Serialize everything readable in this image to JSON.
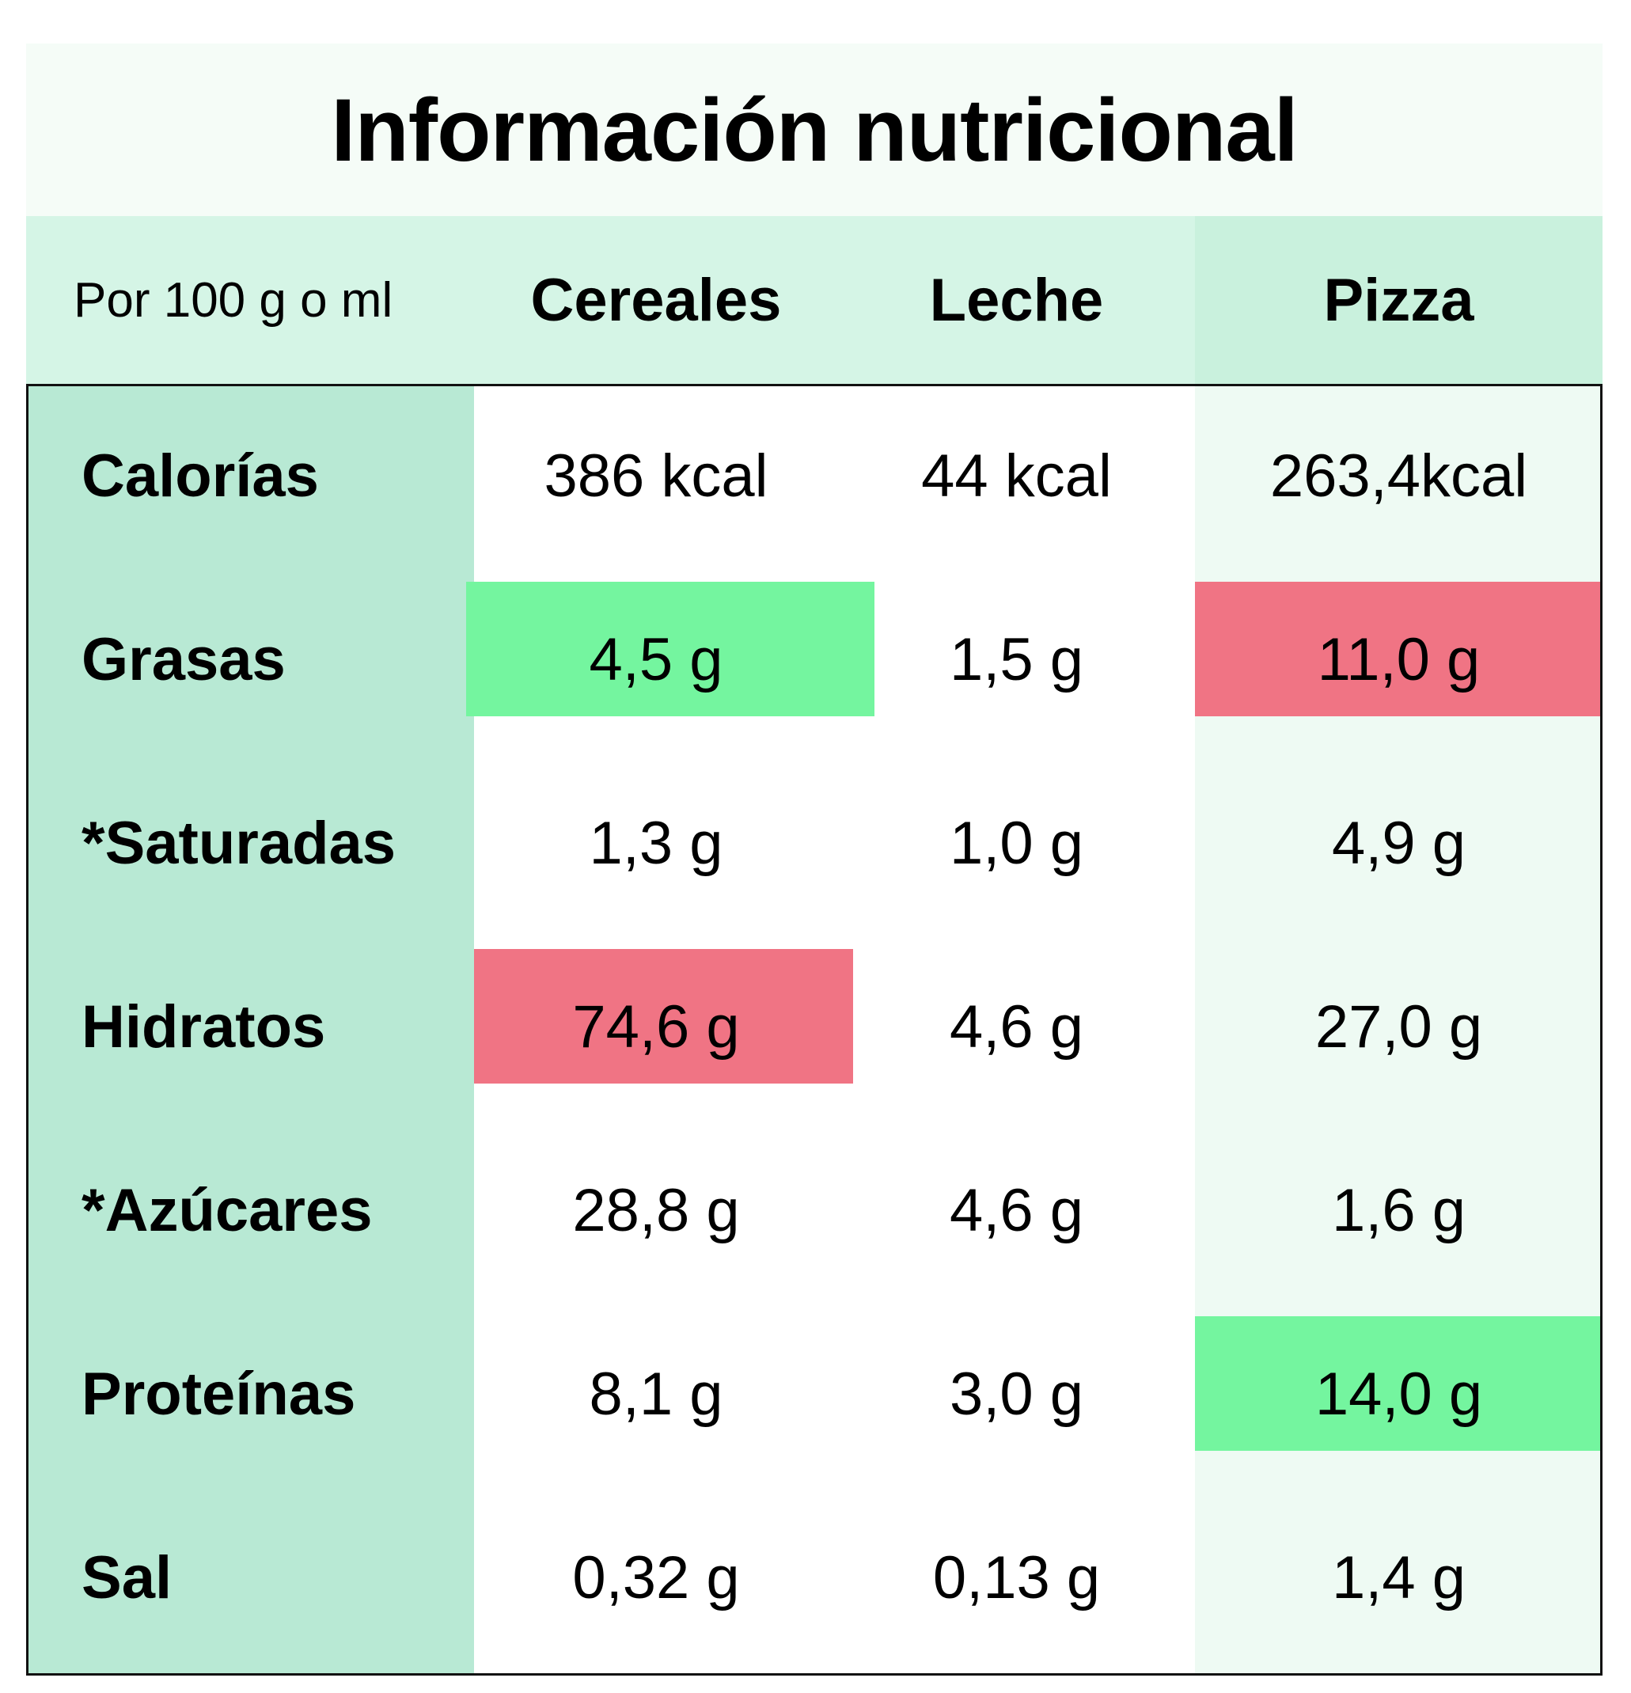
{
  "chart_data": {
    "type": "table",
    "title": "Información nutricional",
    "corner_label": "Por 100 g o ml",
    "columns": [
      "Cereales",
      "Leche",
      "Pizza"
    ],
    "rows": [
      {
        "label": "Calorías",
        "values": [
          "386 kcal",
          "44 kcal",
          "263,4kcal"
        ],
        "highlight": [
          null,
          null,
          null
        ]
      },
      {
        "label": "Grasas",
        "values": [
          "4,5 g",
          "1,5 g",
          "11,0 g"
        ],
        "highlight": [
          "good",
          null,
          "bad"
        ]
      },
      {
        "label": "*Saturadas",
        "values": [
          "1,3 g",
          "1,0 g",
          "4,9 g"
        ],
        "highlight": [
          null,
          null,
          null
        ]
      },
      {
        "label": "Hidratos",
        "values": [
          "74,6 g",
          "4,6 g",
          "27,0 g"
        ],
        "highlight": [
          "bad",
          null,
          null
        ]
      },
      {
        "label": "*Azúcares",
        "values": [
          "28,8 g",
          "4,6 g",
          "1,6 g"
        ],
        "highlight": [
          null,
          null,
          null
        ]
      },
      {
        "label": "Proteínas",
        "values": [
          "8,1 g",
          "3,0 g",
          "14,0 g"
        ],
        "highlight": [
          null,
          null,
          "good"
        ]
      },
      {
        "label": "Sal",
        "values": [
          "0,32 g",
          "0,13 g",
          "1,4 g"
        ],
        "highlight": [
          null,
          null,
          null
        ]
      }
    ]
  },
  "colors": {
    "title_band": "#f5fcf7",
    "header_band": "#d5f5e6",
    "header_pizza": "#c9f1dd",
    "label_column": "#b8e9d4",
    "pizza_column": "#eefaf3",
    "good": "#74f59f",
    "bad": "#f07484"
  }
}
